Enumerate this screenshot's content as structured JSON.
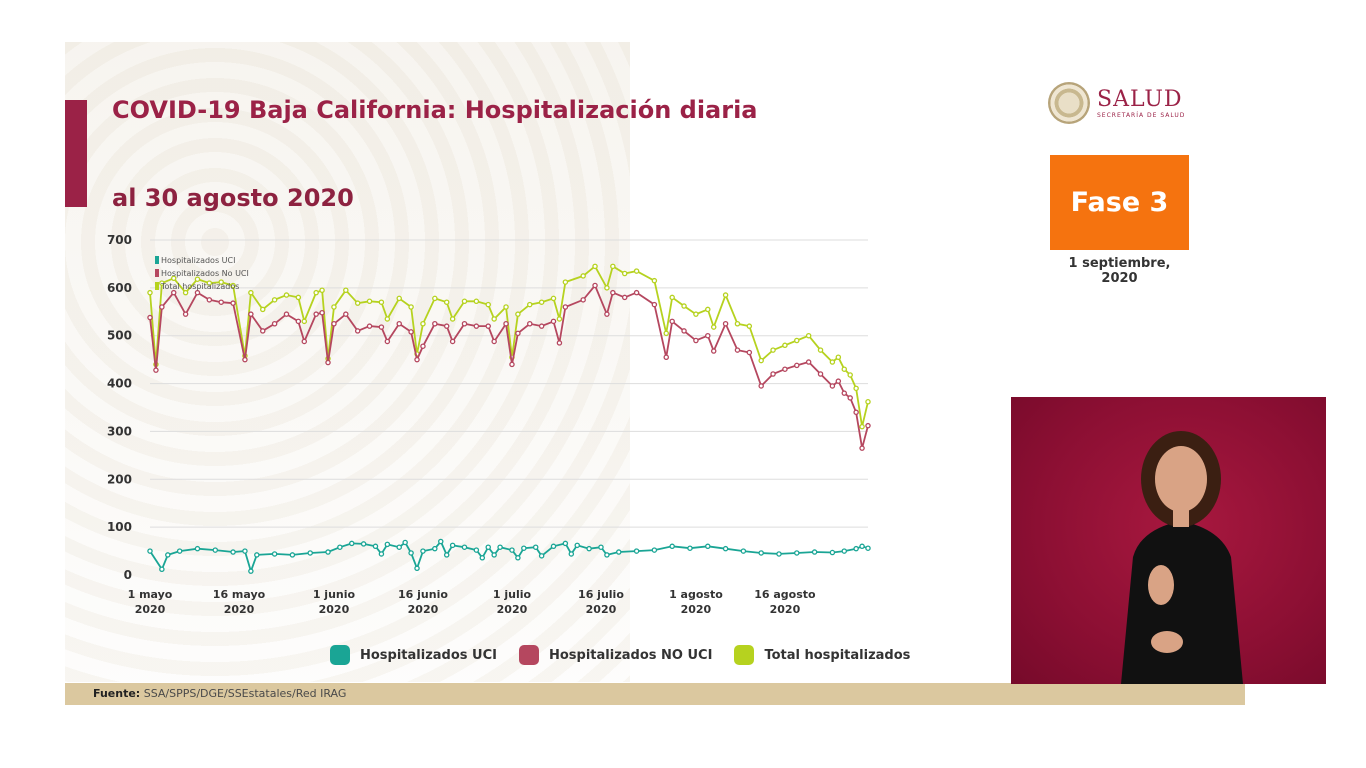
{
  "title": "COVID-19 Baja California: Hospitalización diaria",
  "subtitle": "al 30 agosto 2020",
  "logo": {
    "name": "SALUD",
    "subtitle": "SECRETARÍA DE SALUD"
  },
  "phase": {
    "label": "Fase 3",
    "date_line1": "1 septiembre,",
    "date_line2": "2020"
  },
  "legend": [
    {
      "label": "Hospitalizados UCI",
      "color": "#1aa595"
    },
    {
      "label": "Hospitalizados NO UCI",
      "color": "#b5475f"
    },
    {
      "label": "Total hospitalizados",
      "color": "#b6d21f"
    }
  ],
  "footer": {
    "label": "Fuente:",
    "text": "SSA/SPPS/DGE/SSEstatales/Red IRAG"
  },
  "chart_data": {
    "type": "line",
    "ylim": [
      0,
      700
    ],
    "yticks": [
      0,
      100,
      200,
      300,
      400,
      500,
      600,
      700
    ],
    "grid": true,
    "x_range": [
      "2020-05-01",
      "2020-08-30"
    ],
    "x_ticks": [
      {
        "date": "2020-05-01",
        "line1": "1 mayo",
        "line2": "2020"
      },
      {
        "date": "2020-05-16",
        "line1": "16 mayo",
        "line2": "2020"
      },
      {
        "date": "2020-06-01",
        "line1": "1 junio",
        "line2": "2020"
      },
      {
        "date": "2020-06-16",
        "line1": "16 junio",
        "line2": "2020"
      },
      {
        "date": "2020-07-01",
        "line1": "1 julio",
        "line2": "2020"
      },
      {
        "date": "2020-07-16",
        "line1": "16 julio",
        "line2": "2020"
      },
      {
        "date": "2020-08-01",
        "line1": "1 agosto",
        "line2": "2020"
      },
      {
        "date": "2020-08-16",
        "line1": "16 agosto",
        "line2": "2020"
      }
    ],
    "inner_legend": [
      "Hospitalizados UCI",
      "Hospitalizados No UCI",
      "Total hospitalizados"
    ],
    "series": [
      {
        "name": "Hospitalizados UCI",
        "color": "#1aa595",
        "points": [
          [
            "2020-05-01",
            50
          ],
          [
            "2020-05-03",
            12
          ],
          [
            "2020-05-04",
            42
          ],
          [
            "2020-05-06",
            50
          ],
          [
            "2020-05-09",
            55
          ],
          [
            "2020-05-12",
            52
          ],
          [
            "2020-05-15",
            48
          ],
          [
            "2020-05-17",
            50
          ],
          [
            "2020-05-18",
            8
          ],
          [
            "2020-05-19",
            42
          ],
          [
            "2020-05-22",
            44
          ],
          [
            "2020-05-25",
            42
          ],
          [
            "2020-05-28",
            46
          ],
          [
            "2020-05-31",
            48
          ],
          [
            "2020-06-02",
            58
          ],
          [
            "2020-06-04",
            66
          ],
          [
            "2020-06-06",
            65
          ],
          [
            "2020-06-08",
            60
          ],
          [
            "2020-06-09",
            44
          ],
          [
            "2020-06-10",
            64
          ],
          [
            "2020-06-12",
            58
          ],
          [
            "2020-06-13",
            68
          ],
          [
            "2020-06-14",
            46
          ],
          [
            "2020-06-15",
            14
          ],
          [
            "2020-06-16",
            50
          ],
          [
            "2020-06-18",
            55
          ],
          [
            "2020-06-19",
            70
          ],
          [
            "2020-06-20",
            42
          ],
          [
            "2020-06-21",
            62
          ],
          [
            "2020-06-23",
            58
          ],
          [
            "2020-06-25",
            52
          ],
          [
            "2020-06-26",
            36
          ],
          [
            "2020-06-27",
            58
          ],
          [
            "2020-06-28",
            42
          ],
          [
            "2020-06-29",
            58
          ],
          [
            "2020-07-01",
            52
          ],
          [
            "2020-07-02",
            36
          ],
          [
            "2020-07-03",
            56
          ],
          [
            "2020-07-05",
            58
          ],
          [
            "2020-07-06",
            40
          ],
          [
            "2020-07-08",
            60
          ],
          [
            "2020-07-10",
            66
          ],
          [
            "2020-07-11",
            44
          ],
          [
            "2020-07-12",
            62
          ],
          [
            "2020-07-14",
            55
          ],
          [
            "2020-07-16",
            58
          ],
          [
            "2020-07-17",
            42
          ],
          [
            "2020-07-19",
            48
          ],
          [
            "2020-07-22",
            50
          ],
          [
            "2020-07-25",
            52
          ],
          [
            "2020-07-28",
            60
          ],
          [
            "2020-07-31",
            56
          ],
          [
            "2020-08-03",
            60
          ],
          [
            "2020-08-06",
            55
          ],
          [
            "2020-08-09",
            50
          ],
          [
            "2020-08-12",
            46
          ],
          [
            "2020-08-15",
            44
          ],
          [
            "2020-08-18",
            46
          ],
          [
            "2020-08-21",
            48
          ],
          [
            "2020-08-24",
            47
          ],
          [
            "2020-08-26",
            50
          ],
          [
            "2020-08-28",
            55
          ],
          [
            "2020-08-29",
            60
          ],
          [
            "2020-08-30",
            56
          ]
        ]
      },
      {
        "name": "Hospitalizados NO UCI",
        "color": "#b5475f",
        "points": [
          [
            "2020-05-01",
            538
          ],
          [
            "2020-05-02",
            428
          ],
          [
            "2020-05-03",
            560
          ],
          [
            "2020-05-05",
            590
          ],
          [
            "2020-05-07",
            545
          ],
          [
            "2020-05-09",
            590
          ],
          [
            "2020-05-11",
            575
          ],
          [
            "2020-05-13",
            570
          ],
          [
            "2020-05-15",
            568
          ],
          [
            "2020-05-17",
            450
          ],
          [
            "2020-05-18",
            545
          ],
          [
            "2020-05-20",
            510
          ],
          [
            "2020-05-22",
            525
          ],
          [
            "2020-05-24",
            545
          ],
          [
            "2020-05-26",
            530
          ],
          [
            "2020-05-27",
            488
          ],
          [
            "2020-05-29",
            545
          ],
          [
            "2020-05-30",
            548
          ],
          [
            "2020-05-31",
            444
          ],
          [
            "2020-06-01",
            525
          ],
          [
            "2020-06-03",
            545
          ],
          [
            "2020-06-05",
            510
          ],
          [
            "2020-06-07",
            520
          ],
          [
            "2020-06-09",
            518
          ],
          [
            "2020-06-10",
            488
          ],
          [
            "2020-06-12",
            525
          ],
          [
            "2020-06-14",
            508
          ],
          [
            "2020-06-15",
            450
          ],
          [
            "2020-06-16",
            478
          ],
          [
            "2020-06-18",
            525
          ],
          [
            "2020-06-20",
            520
          ],
          [
            "2020-06-21",
            488
          ],
          [
            "2020-06-23",
            525
          ],
          [
            "2020-06-25",
            520
          ],
          [
            "2020-06-27",
            520
          ],
          [
            "2020-06-28",
            488
          ],
          [
            "2020-06-30",
            525
          ],
          [
            "2020-07-01",
            440
          ],
          [
            "2020-07-02",
            505
          ],
          [
            "2020-07-04",
            525
          ],
          [
            "2020-07-06",
            520
          ],
          [
            "2020-07-08",
            530
          ],
          [
            "2020-07-09",
            485
          ],
          [
            "2020-07-10",
            560
          ],
          [
            "2020-07-13",
            575
          ],
          [
            "2020-07-15",
            605
          ],
          [
            "2020-07-17",
            545
          ],
          [
            "2020-07-18",
            590
          ],
          [
            "2020-07-20",
            580
          ],
          [
            "2020-07-22",
            590
          ],
          [
            "2020-07-25",
            565
          ],
          [
            "2020-07-27",
            455
          ],
          [
            "2020-07-28",
            530
          ],
          [
            "2020-07-30",
            510
          ],
          [
            "2020-08-01",
            490
          ],
          [
            "2020-08-03",
            500
          ],
          [
            "2020-08-04",
            468
          ],
          [
            "2020-08-06",
            525
          ],
          [
            "2020-08-08",
            470
          ],
          [
            "2020-08-10",
            465
          ],
          [
            "2020-08-12",
            395
          ],
          [
            "2020-08-14",
            420
          ],
          [
            "2020-08-16",
            430
          ],
          [
            "2020-08-18",
            438
          ],
          [
            "2020-08-20",
            445
          ],
          [
            "2020-08-22",
            420
          ],
          [
            "2020-08-24",
            395
          ],
          [
            "2020-08-25",
            405
          ],
          [
            "2020-08-26",
            380
          ],
          [
            "2020-08-27",
            370
          ],
          [
            "2020-08-28",
            340
          ],
          [
            "2020-08-29",
            265
          ],
          [
            "2020-08-30",
            312
          ]
        ]
      },
      {
        "name": "Total hospitalizados",
        "color": "#b6d21f",
        "points": [
          [
            "2020-05-01",
            590
          ],
          [
            "2020-05-02",
            440
          ],
          [
            "2020-05-03",
            610
          ],
          [
            "2020-05-05",
            620
          ],
          [
            "2020-05-07",
            590
          ],
          [
            "2020-05-09",
            618
          ],
          [
            "2020-05-11",
            610
          ],
          [
            "2020-05-13",
            612
          ],
          [
            "2020-05-15",
            605
          ],
          [
            "2020-05-17",
            458
          ],
          [
            "2020-05-18",
            590
          ],
          [
            "2020-05-20",
            555
          ],
          [
            "2020-05-22",
            575
          ],
          [
            "2020-05-24",
            585
          ],
          [
            "2020-05-26",
            580
          ],
          [
            "2020-05-27",
            530
          ],
          [
            "2020-05-29",
            590
          ],
          [
            "2020-05-30",
            595
          ],
          [
            "2020-05-31",
            452
          ],
          [
            "2020-06-01",
            560
          ],
          [
            "2020-06-03",
            595
          ],
          [
            "2020-06-05",
            568
          ],
          [
            "2020-06-07",
            572
          ],
          [
            "2020-06-09",
            570
          ],
          [
            "2020-06-10",
            535
          ],
          [
            "2020-06-12",
            578
          ],
          [
            "2020-06-14",
            560
          ],
          [
            "2020-06-15",
            462
          ],
          [
            "2020-06-16",
            525
          ],
          [
            "2020-06-18",
            578
          ],
          [
            "2020-06-20",
            570
          ],
          [
            "2020-06-21",
            535
          ],
          [
            "2020-06-23",
            572
          ],
          [
            "2020-06-25",
            572
          ],
          [
            "2020-06-27",
            565
          ],
          [
            "2020-06-28",
            535
          ],
          [
            "2020-06-30",
            560
          ],
          [
            "2020-07-01",
            455
          ],
          [
            "2020-07-02",
            545
          ],
          [
            "2020-07-04",
            565
          ],
          [
            "2020-07-06",
            570
          ],
          [
            "2020-07-08",
            578
          ],
          [
            "2020-07-09",
            535
          ],
          [
            "2020-07-10",
            612
          ],
          [
            "2020-07-13",
            625
          ],
          [
            "2020-07-15",
            645
          ],
          [
            "2020-07-17",
            600
          ],
          [
            "2020-07-18",
            645
          ],
          [
            "2020-07-20",
            630
          ],
          [
            "2020-07-22",
            635
          ],
          [
            "2020-07-25",
            615
          ],
          [
            "2020-07-27",
            505
          ],
          [
            "2020-07-28",
            580
          ],
          [
            "2020-07-30",
            562
          ],
          [
            "2020-08-01",
            545
          ],
          [
            "2020-08-03",
            555
          ],
          [
            "2020-08-04",
            518
          ],
          [
            "2020-08-06",
            585
          ],
          [
            "2020-08-08",
            525
          ],
          [
            "2020-08-10",
            520
          ],
          [
            "2020-08-12",
            448
          ],
          [
            "2020-08-14",
            470
          ],
          [
            "2020-08-16",
            480
          ],
          [
            "2020-08-18",
            490
          ],
          [
            "2020-08-20",
            500
          ],
          [
            "2020-08-22",
            470
          ],
          [
            "2020-08-24",
            445
          ],
          [
            "2020-08-25",
            455
          ],
          [
            "2020-08-26",
            430
          ],
          [
            "2020-08-27",
            418
          ],
          [
            "2020-08-28",
            390
          ],
          [
            "2020-08-29",
            310
          ],
          [
            "2020-08-30",
            362
          ]
        ]
      }
    ]
  }
}
